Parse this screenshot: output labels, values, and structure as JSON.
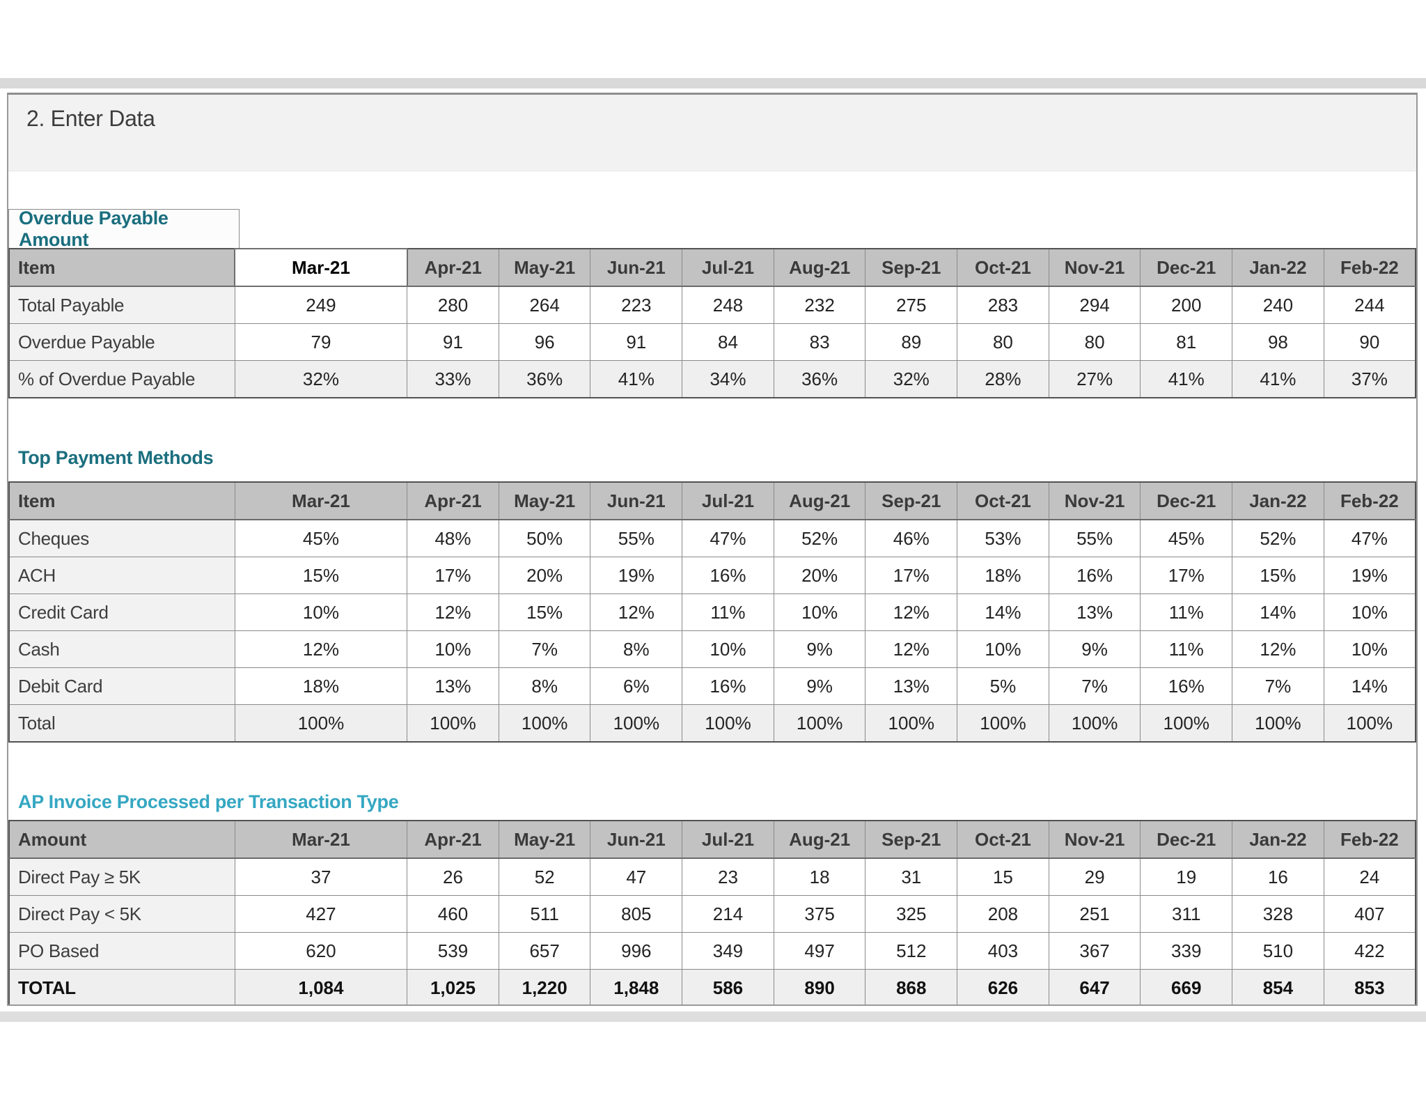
{
  "page": {
    "title": "2. Enter Data"
  },
  "months": [
    "Mar-21",
    "Apr-21",
    "May-21",
    "Jun-21",
    "Jul-21",
    "Aug-21",
    "Sep-21",
    "Oct-21",
    "Nov-21",
    "Dec-21",
    "Jan-22",
    "Feb-22"
  ],
  "colors": {
    "section_title_teal": "#1a6e7e",
    "section_title_cyan": "#35a7c2",
    "header_row_gray": "#c2c2c2",
    "row_label_gray": "#f2f2f2",
    "shaded_row_gray": "#efefef",
    "chrome_band_gray": "#d9d9d9"
  },
  "tables": [
    {
      "id": "overdue-payable",
      "title": "Overdue Payable Amount",
      "header_label": "Item",
      "selected_month": "Mar-21",
      "rows": [
        {
          "label": "Total Payable",
          "values": [
            "249",
            "280",
            "264",
            "223",
            "248",
            "232",
            "275",
            "283",
            "294",
            "200",
            "240",
            "244"
          ]
        },
        {
          "label": "Overdue Payable",
          "values": [
            "79",
            "91",
            "96",
            "91",
            "84",
            "83",
            "89",
            "80",
            "80",
            "81",
            "98",
            "90"
          ]
        },
        {
          "label": "% of Overdue Payable",
          "shaded": true,
          "values": [
            "32%",
            "33%",
            "36%",
            "41%",
            "34%",
            "36%",
            "32%",
            "28%",
            "27%",
            "41%",
            "41%",
            "37%"
          ]
        }
      ]
    },
    {
      "id": "top-payment-methods",
      "title": "Top Payment Methods",
      "header_label": "Item",
      "selected_month": "",
      "rows": [
        {
          "label": "Cheques",
          "values": [
            "45%",
            "48%",
            "50%",
            "55%",
            "47%",
            "52%",
            "46%",
            "53%",
            "55%",
            "45%",
            "52%",
            "47%"
          ]
        },
        {
          "label": "ACH",
          "values": [
            "15%",
            "17%",
            "20%",
            "19%",
            "16%",
            "20%",
            "17%",
            "18%",
            "16%",
            "17%",
            "15%",
            "19%"
          ]
        },
        {
          "label": "Credit Card",
          "values": [
            "10%",
            "12%",
            "15%",
            "12%",
            "11%",
            "10%",
            "12%",
            "14%",
            "13%",
            "11%",
            "14%",
            "10%"
          ]
        },
        {
          "label": "Cash",
          "values": [
            "12%",
            "10%",
            "7%",
            "8%",
            "10%",
            "9%",
            "12%",
            "10%",
            "9%",
            "11%",
            "12%",
            "10%"
          ]
        },
        {
          "label": "Debit Card",
          "values": [
            "18%",
            "13%",
            "8%",
            "6%",
            "16%",
            "9%",
            "13%",
            "5%",
            "7%",
            "16%",
            "7%",
            "14%"
          ]
        },
        {
          "label": "Total",
          "shaded": true,
          "values": [
            "100%",
            "100%",
            "100%",
            "100%",
            "100%",
            "100%",
            "100%",
            "100%",
            "100%",
            "100%",
            "100%",
            "100%"
          ]
        }
      ]
    },
    {
      "id": "ap-invoice-transaction-type",
      "title": "AP Invoice Processed per Transaction Type",
      "header_label": "Amount",
      "selected_month": "",
      "rows": [
        {
          "label": "Direct Pay ≥ 5K",
          "values": [
            "37",
            "26",
            "52",
            "47",
            "23",
            "18",
            "31",
            "15",
            "29",
            "19",
            "16",
            "24"
          ]
        },
        {
          "label": "Direct Pay < 5K",
          "values": [
            "427",
            "460",
            "511",
            "805",
            "214",
            "375",
            "325",
            "208",
            "251",
            "311",
            "328",
            "407"
          ]
        },
        {
          "label": "PO Based",
          "values": [
            "620",
            "539",
            "657",
            "996",
            "349",
            "497",
            "512",
            "403",
            "367",
            "339",
            "510",
            "422"
          ]
        },
        {
          "label": "TOTAL",
          "shaded": true,
          "bold": true,
          "values": [
            "1,084",
            "1,025",
            "1,220",
            "1,848",
            "586",
            "890",
            "868",
            "626",
            "647",
            "669",
            "854",
            "853"
          ]
        }
      ]
    }
  ]
}
